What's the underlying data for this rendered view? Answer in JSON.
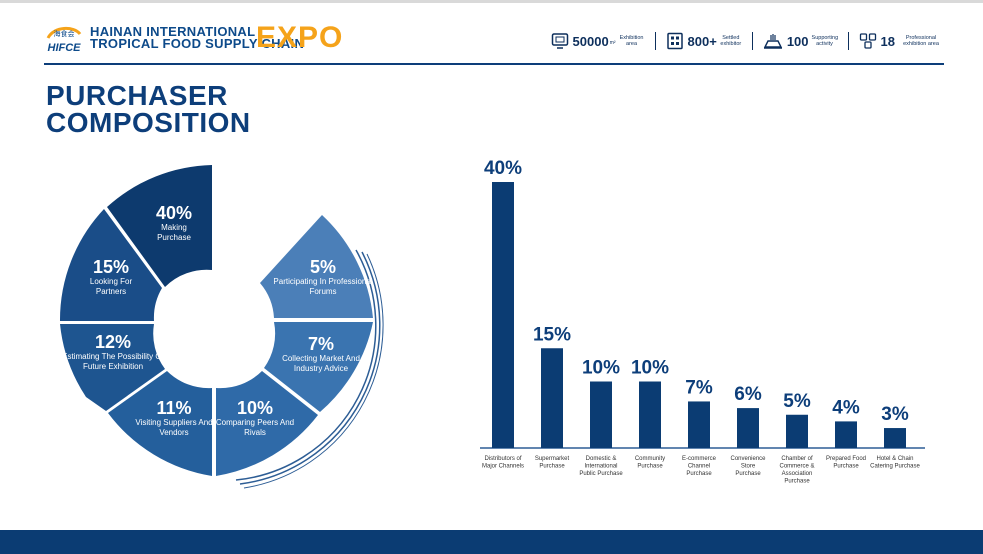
{
  "header": {
    "logo_mark": "HIFCE",
    "logo_cn": "海食会",
    "logo_line1": "HAINAN INTERNATIONAL",
    "logo_line2": "TROPICAL FOOD SUPPLY CHAIN",
    "logo_expo": "EXPO",
    "stats": [
      {
        "value": "50000",
        "unit": "m²",
        "label": "Exhibition area",
        "icon": "screen-icon"
      },
      {
        "value": "800+",
        "unit": "",
        "label": "Settled exhibitor",
        "icon": "building-icon"
      },
      {
        "value": "100",
        "unit": "",
        "label": "Supporting activity",
        "icon": "podium-icon"
      },
      {
        "value": "18",
        "unit": "",
        "label": "Professional exhibition area",
        "icon": "cubes-icon"
      }
    ]
  },
  "title": {
    "line1": "PURCHASER",
    "line2": "COMPOSITION"
  },
  "donut": {
    "segments": [
      {
        "pct": "40%",
        "text": "Making Purchase"
      },
      {
        "pct": "5%",
        "text": "Participating In Professional Forums"
      },
      {
        "pct": "7%",
        "text": "Collecting Market And Industry Advice"
      },
      {
        "pct": "10%",
        "text": "Comparing Peers And Rivals"
      },
      {
        "pct": "11%",
        "text": "Visiting Suppliers And Vendors"
      },
      {
        "pct": "12%",
        "text": "Estimating The Possibility Of Future Exhibition"
      },
      {
        "pct": "15%",
        "text": "Looking For Partners"
      }
    ]
  },
  "chart_data": {
    "type": "bar",
    "title": "",
    "xlabel": "",
    "ylabel": "",
    "ylim": [
      0,
      40
    ],
    "categories": [
      "Distributors of Major Channels",
      "Supermarket Purchase",
      "Domestic & International Public Purchase",
      "Community Purchase",
      "E-commerce Channel Purchase",
      "Convenience Store Purchase",
      "Chamber of Commerce & Association Purchase",
      "Prepared Food Purchase",
      "Hotel & Chain Catering Purchase"
    ],
    "category_lines": [
      [
        "Distributors of",
        "Major Channels"
      ],
      [
        "Supermarket",
        "Purchase"
      ],
      [
        "Domestic &",
        "International",
        "Public Purchase"
      ],
      [
        "Community",
        "Purchase"
      ],
      [
        "E-commerce",
        "Channel",
        "Purchase"
      ],
      [
        "Convenience",
        "Store",
        "Purchase"
      ],
      [
        "Chamber of",
        "Commerce &",
        "Association",
        "Purchase"
      ],
      [
        "Prepared Food",
        "Purchase"
      ],
      [
        "Hotel & Chain",
        "Catering Purchase"
      ]
    ],
    "values": [
      40,
      15,
      10,
      10,
      7,
      6,
      5,
      4,
      3
    ],
    "labels": [
      "40%",
      "15%",
      "10%",
      "10%",
      "7%",
      "6%",
      "5%",
      "4%",
      "3%"
    ]
  },
  "colors": {
    "navy": "#0d3e7a",
    "bar": "#0b3c73",
    "orange": "#f5a31a"
  }
}
